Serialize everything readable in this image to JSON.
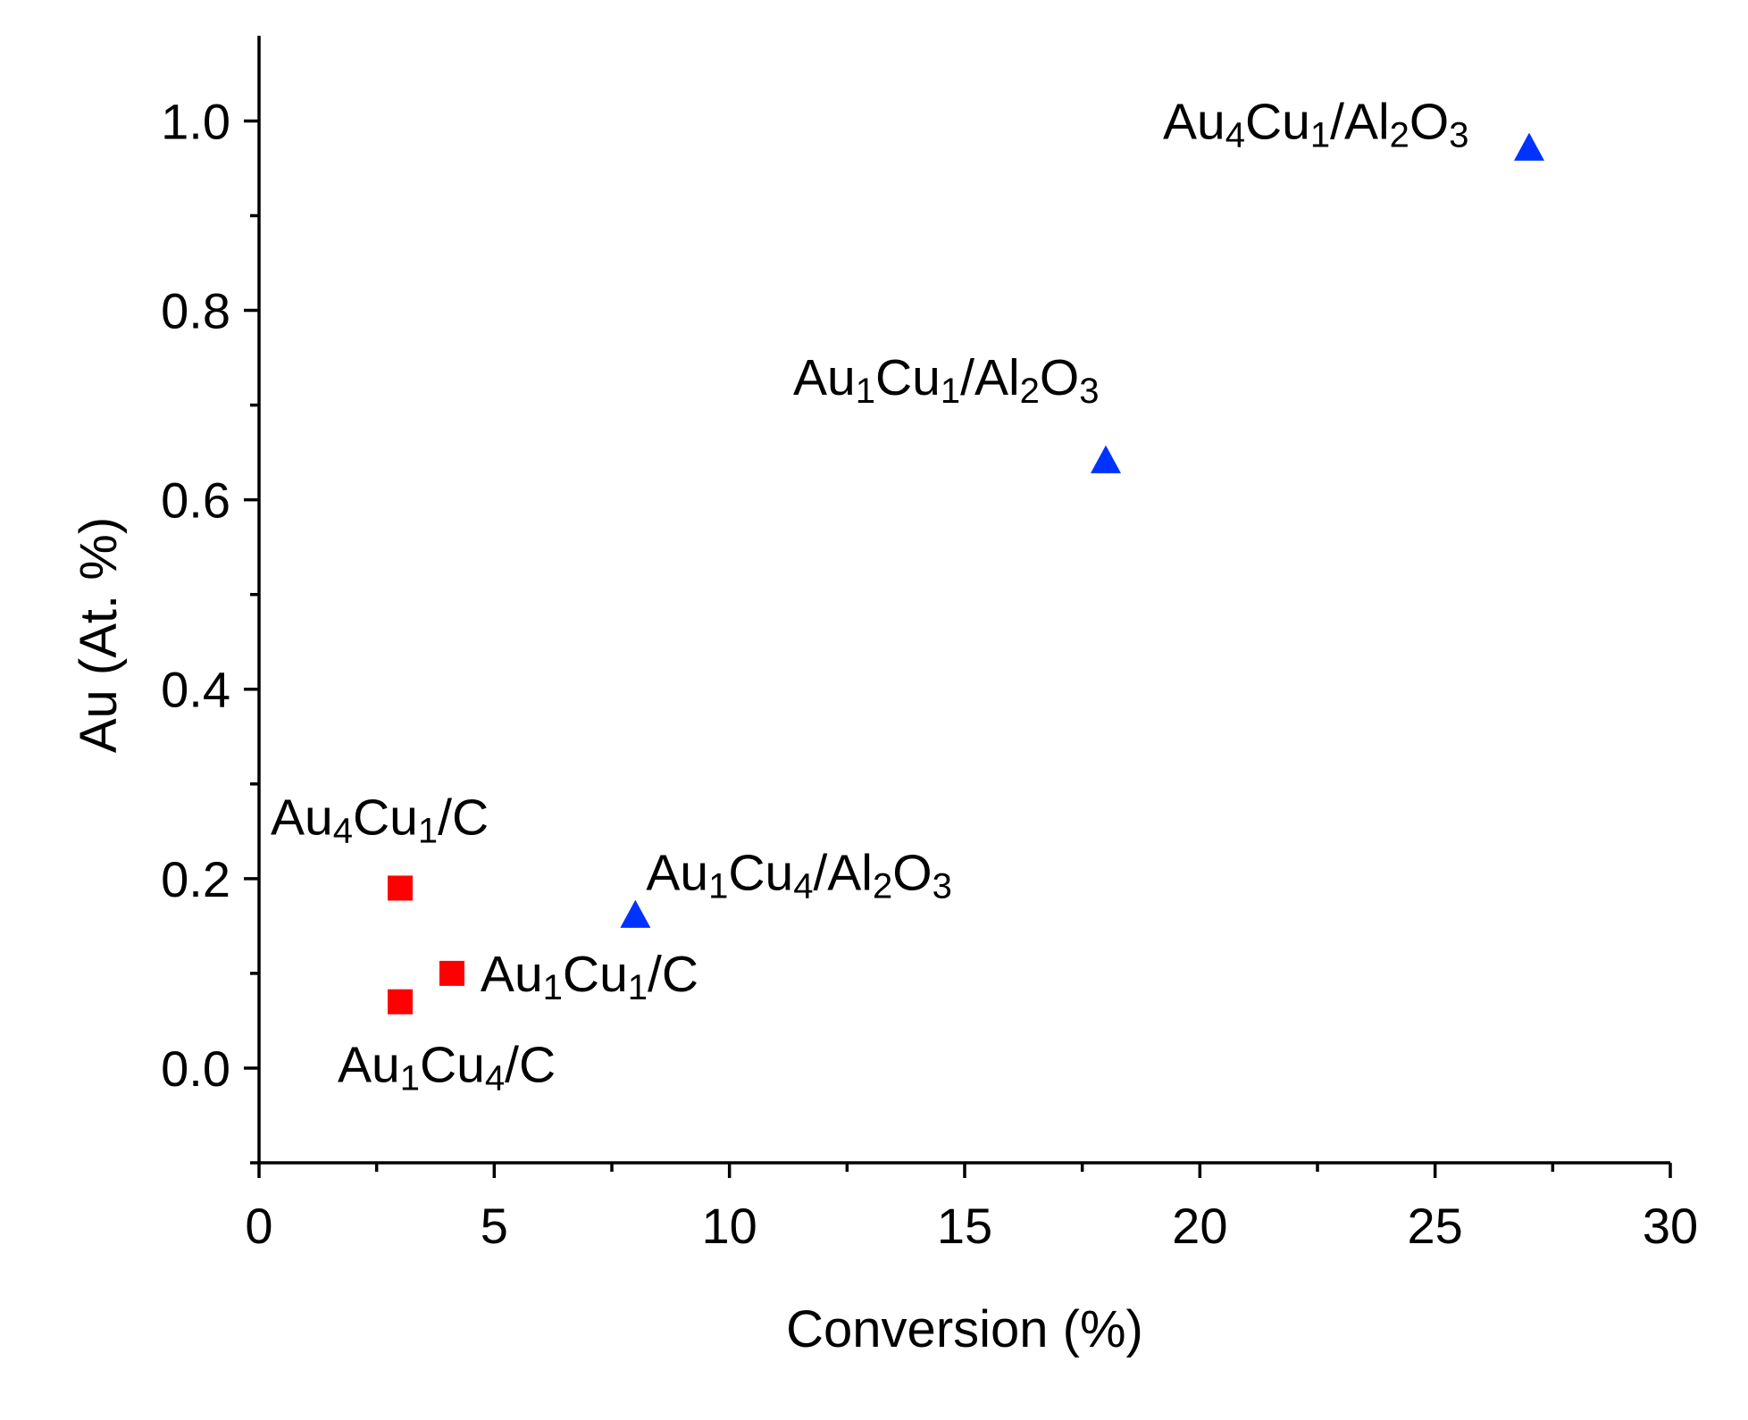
{
  "chart_data": {
    "type": "scatter",
    "title": "",
    "xlabel": "Conversion (%)",
    "ylabel": "Au (At. %)",
    "xlim": [
      0,
      30
    ],
    "ylim": [
      -0.1,
      1.09
    ],
    "x_ticks": [
      0,
      5,
      10,
      15,
      20,
      25,
      30
    ],
    "x_tick_labels": [
      "0",
      "5",
      "10",
      "15",
      "20",
      "25",
      "30"
    ],
    "y_ticks": [
      0.0,
      0.2,
      0.4,
      0.6,
      0.8,
      1.0
    ],
    "y_tick_labels": [
      "0.0",
      "0.2",
      "0.4",
      "0.6",
      "0.8",
      "1.0"
    ],
    "grid": false,
    "legend": "none",
    "series": [
      {
        "marker": "square",
        "color": "#ff0000",
        "points": [
          {
            "x": 3.0,
            "y": 0.19,
            "label": "Au4Cu1/C"
          },
          {
            "x": 4.1,
            "y": 0.1,
            "label": "Au1Cu1/C"
          },
          {
            "x": 3.0,
            "y": 0.07,
            "label": "Au1Cu4/C"
          }
        ]
      },
      {
        "marker": "triangle",
        "color": "#0033ff",
        "points": [
          {
            "x": 8.0,
            "y": 0.16,
            "label": "Au1Cu4/Al2O3"
          },
          {
            "x": 18.0,
            "y": 0.64,
            "label": "Au1Cu1/Al2O3"
          },
          {
            "x": 27.0,
            "y": 0.97,
            "label": "Au4Cu1/Al2O3"
          }
        ]
      }
    ]
  }
}
